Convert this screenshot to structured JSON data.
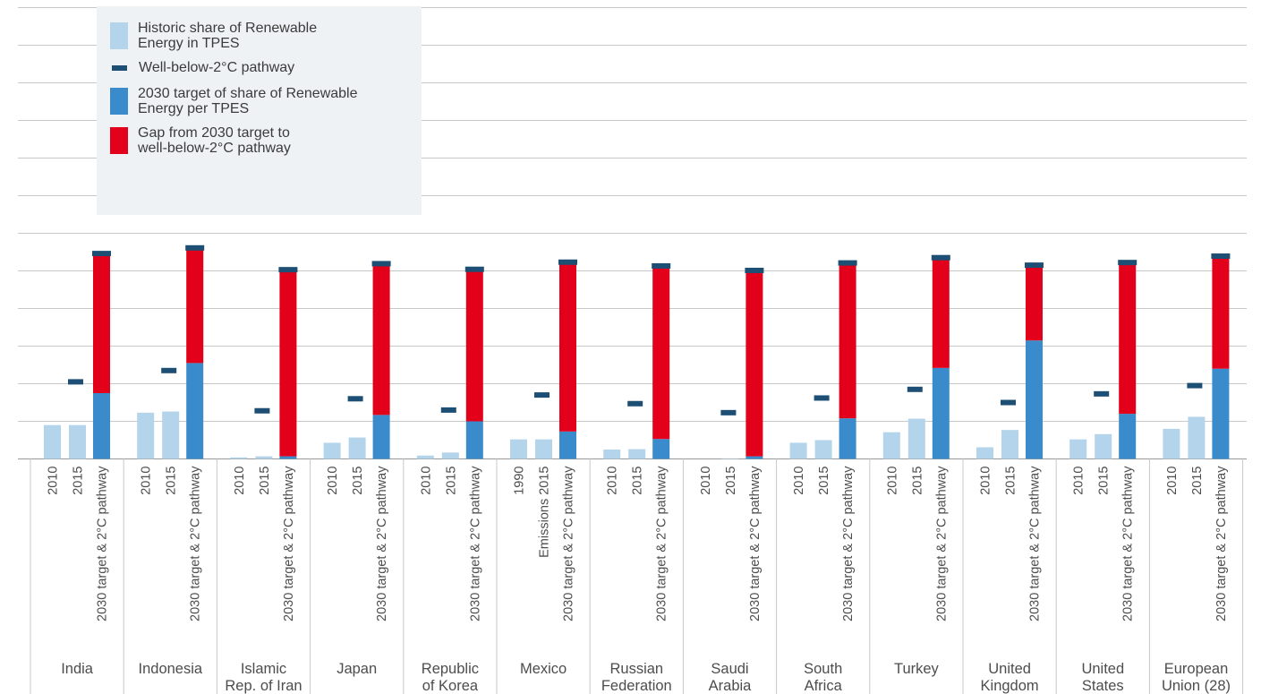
{
  "colors": {
    "historic": "#b3d4ea",
    "target": "#3a8bcb",
    "gap": "#e2001a",
    "pathway": "#1d4e73",
    "grid": "#c8c8c8",
    "text": "#4d4d4d"
  },
  "legend": {
    "items": [
      {
        "key": "historic",
        "label_lines": [
          "Historic share of Renewable",
          "Energy in TPES"
        ]
      },
      {
        "key": "pathway",
        "label_lines": [
          "Well-below-2°C pathway"
        ]
      },
      {
        "key": "target",
        "label_lines": [
          "2030 target of share of Renewable",
          "Energy per TPES"
        ]
      },
      {
        "key": "gap",
        "label_lines": [
          "Gap from 2030 target to",
          "well-below-2°C pathway"
        ]
      }
    ]
  },
  "chart_data": {
    "type": "bar",
    "ylim": [
      0,
      12
    ],
    "grid": true,
    "legend_position": "top-left",
    "countries": [
      {
        "name_lines": [
          "India"
        ],
        "labels": [
          "2010",
          "2015",
          "2030 target & 2°C pathway"
        ],
        "historic": [
          0.9,
          0.9
        ],
        "target": 1.75,
        "top": 5.45,
        "pathway_mid": 2.05
      },
      {
        "name_lines": [
          "Indonesia"
        ],
        "labels": [
          "2010",
          "2015",
          "2030 target & 2°C pathway"
        ],
        "historic": [
          1.23,
          1.26
        ],
        "target": 2.55,
        "top": 5.6,
        "pathway_mid": 2.35
      },
      {
        "name_lines": [
          "Islamic",
          "Rep. of Iran"
        ],
        "labels": [
          "2010",
          "2015",
          "2030 target & 2°C pathway"
        ],
        "historic": [
          0.04,
          0.07
        ],
        "target": 0.07,
        "top": 5.02,
        "pathway_mid": 1.28
      },
      {
        "name_lines": [
          "Japan"
        ],
        "labels": [
          "2010",
          "2015",
          "2030 target & 2°C pathway"
        ],
        "historic": [
          0.43,
          0.57
        ],
        "target": 1.17,
        "top": 5.18,
        "pathway_mid": 1.6
      },
      {
        "name_lines": [
          "Republic",
          "of Korea"
        ],
        "labels": [
          "2010",
          "2015",
          "2030 target & 2°C pathway"
        ],
        "historic": [
          0.09,
          0.17
        ],
        "target": 1.0,
        "top": 5.03,
        "pathway_mid": 1.3
      },
      {
        "name_lines": [
          "Mexico"
        ],
        "labels": [
          "1990",
          "Emissions 2015",
          "2030 target & 2°C pathway"
        ],
        "historic": [
          0.52,
          0.52
        ],
        "target": 0.73,
        "top": 5.22,
        "pathway_mid": 1.7
      },
      {
        "name_lines": [
          "Russian",
          "Federation"
        ],
        "labels": [
          "2010",
          "2015",
          "2030 target & 2°C pathway"
        ],
        "historic": [
          0.25,
          0.26
        ],
        "target": 0.53,
        "top": 5.12,
        "pathway_mid": 1.47
      },
      {
        "name_lines": [
          "Saudi",
          "Arabia"
        ],
        "labels": [
          "2010",
          "2015",
          "2030 target & 2°C pathway"
        ],
        "historic": [
          0.0,
          0.01
        ],
        "target": 0.07,
        "top": 5.0,
        "pathway_mid": 1.23
      },
      {
        "name_lines": [
          "South",
          "Africa"
        ],
        "labels": [
          "2010",
          "2015",
          "2030 target & 2°C pathway"
        ],
        "historic": [
          0.43,
          0.5
        ],
        "target": 1.08,
        "top": 5.2,
        "pathway_mid": 1.62
      },
      {
        "name_lines": [
          "Turkey"
        ],
        "labels": [
          "2010",
          "2015",
          "2030 target & 2°C pathway"
        ],
        "historic": [
          0.71,
          1.07
        ],
        "target": 2.42,
        "top": 5.34,
        "pathway_mid": 1.85
      },
      {
        "name_lines": [
          "United",
          "Kingdom"
        ],
        "labels": [
          "2010",
          "2015",
          "2030 target & 2°C pathway"
        ],
        "historic": [
          0.31,
          0.77
        ],
        "target": 3.15,
        "top": 5.14,
        "pathway_mid": 1.5
      },
      {
        "name_lines": [
          "United",
          "States"
        ],
        "labels": [
          "2010",
          "2015",
          "2030 target & 2°C pathway"
        ],
        "historic": [
          0.52,
          0.66
        ],
        "target": 1.2,
        "top": 5.21,
        "pathway_mid": 1.73
      },
      {
        "name_lines": [
          "European",
          "Union (28)"
        ],
        "labels": [
          "2010",
          "2015",
          "2030 target & 2°C pathway"
        ],
        "historic": [
          0.8,
          1.12
        ],
        "target": 2.4,
        "top": 5.38,
        "pathway_mid": 1.95
      }
    ]
  }
}
